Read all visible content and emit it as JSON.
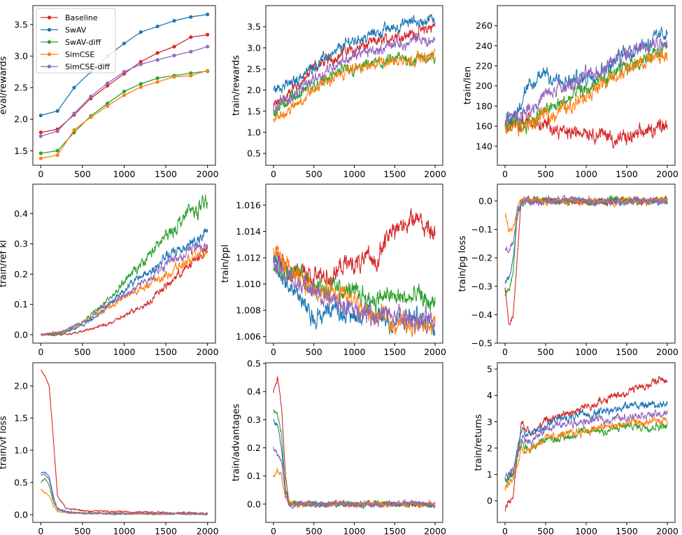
{
  "legend": [
    "Baseline",
    "SwAV",
    "SwAV-diff",
    "SimCSE",
    "SimCSE-diff"
  ],
  "colors": [
    "#d62728",
    "#1f77b4",
    "#2ca02c",
    "#ff7f0e",
    "#9467bd"
  ],
  "chart_data": [
    {
      "type": "line",
      "ylabel": "eval/rewards",
      "markers": true,
      "xlim": [
        -95,
        2095
      ],
      "ylim": [
        1.27,
        3.8
      ],
      "xticks": [
        0,
        500,
        1000,
        1500,
        2000
      ],
      "yticks": [
        1.5,
        2.0,
        2.5,
        3.0,
        3.5
      ],
      "ytick_labels": [
        "1.5",
        "2.0",
        "2.5",
        "3.0",
        "3.5"
      ],
      "legend": "top-left",
      "x": [
        0,
        200,
        400,
        600,
        800,
        1000,
        1200,
        1400,
        1600,
        1800,
        2000
      ],
      "series": [
        {
          "name": "Baseline",
          "values": [
            1.79,
            1.84,
            2.07,
            2.33,
            2.53,
            2.72,
            2.91,
            3.05,
            3.15,
            3.3,
            3.34
          ]
        },
        {
          "name": "SwAV",
          "values": [
            2.06,
            2.13,
            2.5,
            2.75,
            3.0,
            3.2,
            3.38,
            3.47,
            3.56,
            3.62,
            3.66
          ]
        },
        {
          "name": "SwAV-diff",
          "values": [
            1.46,
            1.5,
            1.79,
            2.05,
            2.25,
            2.44,
            2.56,
            2.65,
            2.69,
            2.73,
            2.76
          ]
        },
        {
          "name": "SimCSE",
          "values": [
            1.38,
            1.43,
            1.83,
            2.03,
            2.21,
            2.38,
            2.51,
            2.59,
            2.67,
            2.69,
            2.77
          ]
        },
        {
          "name": "SimCSE-diff",
          "values": [
            1.73,
            1.81,
            2.09,
            2.36,
            2.57,
            2.75,
            2.87,
            2.94,
            3.01,
            3.07,
            3.15
          ]
        }
      ]
    },
    {
      "type": "line",
      "ylabel": "train/rewards",
      "xlim": [
        -95,
        2095
      ],
      "ylim": [
        0.22,
        4.0
      ],
      "xticks": [
        0,
        500,
        1000,
        1500,
        2000
      ],
      "yticks": [
        0.5,
        1,
        1.5,
        2,
        2.5,
        3,
        3.5
      ],
      "ytick_labels": [
        "0.5",
        "1.0",
        "1.5",
        "2.0",
        "2.5",
        "3.0",
        "3.5"
      ],
      "noise": 0.09,
      "x": [
        0,
        250,
        500,
        750,
        1000,
        1250,
        1500,
        1750,
        2000
      ],
      "series": [
        {
          "name": "Baseline",
          "values": [
            1.6,
            2.0,
            2.5,
            2.8,
            3.0,
            3.1,
            3.3,
            3.35,
            3.5
          ]
        },
        {
          "name": "SwAV",
          "values": [
            2.0,
            2.2,
            2.6,
            2.9,
            3.2,
            3.35,
            3.5,
            3.6,
            3.65
          ]
        },
        {
          "name": "SwAV-diff",
          "values": [
            1.5,
            1.8,
            2.1,
            2.35,
            2.5,
            2.6,
            2.7,
            2.75,
            2.75
          ]
        },
        {
          "name": "SimCSE",
          "values": [
            1.3,
            1.6,
            2.0,
            2.3,
            2.5,
            2.6,
            2.7,
            2.75,
            2.8
          ]
        },
        {
          "name": "SimCSE-diff",
          "values": [
            1.6,
            1.9,
            2.3,
            2.6,
            2.8,
            2.95,
            3.05,
            3.15,
            3.2
          ]
        }
      ]
    },
    {
      "type": "line",
      "ylabel": "train/len",
      "xlim": [
        -95,
        2095
      ],
      "ylim": [
        121,
        280
      ],
      "xticks": [
        0,
        500,
        1000,
        1500,
        2000
      ],
      "yticks": [
        140,
        160,
        180,
        200,
        220,
        240,
        260
      ],
      "ytick_labels": [
        "140",
        "160",
        "180",
        "200",
        "220",
        "240",
        "260"
      ],
      "noise": 5,
      "x": [
        0,
        250,
        500,
        750,
        1000,
        1250,
        1500,
        1750,
        2000
      ],
      "series": [
        {
          "name": "Baseline",
          "values": [
            160,
            165,
            160,
            155,
            155,
            150,
            145,
            155,
            165
          ]
        },
        {
          "name": "SwAV",
          "values": [
            160,
            190,
            215,
            200,
            210,
            220,
            235,
            245,
            255
          ]
        },
        {
          "name": "SwAV-diff",
          "values": [
            160,
            165,
            175,
            185,
            195,
            205,
            220,
            230,
            235
          ]
        },
        {
          "name": "SimCSE",
          "values": [
            155,
            160,
            170,
            180,
            190,
            205,
            215,
            225,
            230
          ]
        },
        {
          "name": "SimCSE-diff",
          "values": [
            165,
            175,
            190,
            200,
            210,
            220,
            230,
            240,
            245
          ]
        }
      ]
    },
    {
      "type": "line",
      "ylabel": "train/ref kl",
      "xlim": [
        -95,
        2095
      ],
      "ylim": [
        -0.028,
        0.497
      ],
      "xticks": [
        0,
        500,
        1000,
        1500,
        2000
      ],
      "yticks": [
        0,
        0.1,
        0.2,
        0.3,
        0.4
      ],
      "ytick_labels": [
        "0.0",
        "0.1",
        "0.2",
        "0.3",
        "0.4"
      ],
      "noise": 0.012,
      "x": [
        0,
        250,
        500,
        750,
        1000,
        1250,
        1500,
        1750,
        2000
      ],
      "series": [
        {
          "name": "Baseline",
          "values": [
            0,
            0,
            0.01,
            0.03,
            0.06,
            0.1,
            0.16,
            0.22,
            0.28
          ]
        },
        {
          "name": "SwAV",
          "values": [
            0,
            0.005,
            0.03,
            0.08,
            0.15,
            0.2,
            0.25,
            0.3,
            0.33
          ]
        },
        {
          "name": "SwAV-diff",
          "values": [
            0,
            0.005,
            0.04,
            0.1,
            0.17,
            0.25,
            0.32,
            0.4,
            0.43
          ]
        },
        {
          "name": "SimCSE",
          "values": [
            0,
            0.01,
            0.04,
            0.08,
            0.12,
            0.16,
            0.2,
            0.24,
            0.27
          ]
        },
        {
          "name": "SimCSE-diff",
          "values": [
            0,
            0.01,
            0.04,
            0.09,
            0.13,
            0.18,
            0.23,
            0.27,
            0.3
          ]
        }
      ]
    },
    {
      "type": "line",
      "ylabel": "train/ppl",
      "xlim": [
        -95,
        2095
      ],
      "ylim": [
        1.0055,
        1.0176
      ],
      "xticks": [
        0,
        500,
        1000,
        1500,
        2000
      ],
      "yticks": [
        1.006,
        1.008,
        1.01,
        1.012,
        1.014,
        1.016
      ],
      "ytick_labels": [
        "1.006",
        "1.008",
        "1.010",
        "1.012",
        "1.014",
        "1.016"
      ],
      "noise": 0.0005,
      "x": [
        0,
        250,
        500,
        750,
        1000,
        1250,
        1500,
        1750,
        2000
      ],
      "series": [
        {
          "name": "Baseline",
          "values": [
            1.012,
            1.011,
            1.0105,
            1.0108,
            1.0115,
            1.012,
            1.0145,
            1.015,
            1.014
          ]
        },
        {
          "name": "SwAV",
          "values": [
            1.012,
            1.0095,
            1.0075,
            1.008,
            1.0078,
            1.0074,
            1.0072,
            1.0072,
            1.0072
          ]
        },
        {
          "name": "SwAV-diff",
          "values": [
            1.0115,
            1.011,
            1.0102,
            1.0098,
            1.0095,
            1.009,
            1.009,
            1.0088,
            1.0085
          ]
        },
        {
          "name": "SimCSE",
          "values": [
            1.0125,
            1.0105,
            1.0098,
            1.0092,
            1.0085,
            1.0075,
            1.0072,
            1.007,
            1.007
          ]
        },
        {
          "name": "SimCSE-diff",
          "values": [
            1.0115,
            1.0103,
            1.0093,
            1.0086,
            1.008,
            1.0077,
            1.0075,
            1.0073,
            1.0072
          ]
        }
      ]
    },
    {
      "type": "line",
      "ylabel": "train/pg loss",
      "xlim": [
        -95,
        2095
      ],
      "ylim": [
        -0.5,
        0.059
      ],
      "xticks": [
        0,
        500,
        1000,
        1500,
        2000
      ],
      "yticks": [
        -0.5,
        -0.4,
        -0.3,
        -0.2,
        -0.1,
        0
      ],
      "ytick_labels": [
        "−0.5",
        "−0.4",
        "−0.3",
        "−0.2",
        "−0.1",
        "0.0"
      ],
      "noise": 0.008,
      "x": [
        0,
        50,
        100,
        150,
        200,
        300,
        2000
      ],
      "series": [
        {
          "name": "Baseline",
          "values": [
            -0.3,
            -0.43,
            -0.4,
            -0.2,
            0,
            0,
            0
          ]
        },
        {
          "name": "SwAV",
          "values": [
            -0.28,
            -0.27,
            -0.2,
            -0.05,
            0,
            0,
            0
          ]
        },
        {
          "name": "SwAV-diff",
          "values": [
            -0.33,
            -0.32,
            -0.25,
            -0.05,
            0,
            0,
            0
          ]
        },
        {
          "name": "SimCSE",
          "values": [
            -0.05,
            -0.1,
            -0.1,
            -0.02,
            0,
            0,
            0
          ]
        },
        {
          "name": "SimCSE-diff",
          "values": [
            -0.17,
            -0.17,
            -0.15,
            -0.03,
            0,
            0,
            0
          ]
        }
      ]
    },
    {
      "type": "line",
      "ylabel": "train/vf loss",
      "xlim": [
        -95,
        2095
      ],
      "ylim": [
        -0.12,
        2.36
      ],
      "xticks": [
        0,
        500,
        1000,
        1500,
        2000
      ],
      "yticks": [
        0,
        0.5,
        1,
        1.5,
        2
      ],
      "ytick_labels": [
        "0.0",
        "0.5",
        "1.0",
        "1.5",
        "2.0"
      ],
      "noise": 0.008,
      "x": [
        0,
        50,
        100,
        150,
        200,
        300,
        500,
        2000
      ],
      "series": [
        {
          "name": "Baseline",
          "values": [
            2.25,
            2.15,
            2.0,
            1.2,
            0.3,
            0.1,
            0.06,
            0.02
          ]
        },
        {
          "name": "SwAV",
          "values": [
            0.65,
            0.65,
            0.6,
            0.3,
            0.1,
            0.05,
            0.03,
            0.01
          ]
        },
        {
          "name": "SwAV-diff",
          "values": [
            0.5,
            0.55,
            0.45,
            0.2,
            0.08,
            0.04,
            0.02,
            0.01
          ]
        },
        {
          "name": "SimCSE",
          "values": [
            0.4,
            0.35,
            0.3,
            0.15,
            0.05,
            0.03,
            0.02,
            0.01
          ]
        },
        {
          "name": "SimCSE-diff",
          "values": [
            0.62,
            0.62,
            0.55,
            0.25,
            0.08,
            0.04,
            0.02,
            0.01
          ]
        }
      ]
    },
    {
      "type": "line",
      "ylabel": "train/advantages",
      "xlim": [
        -95,
        2095
      ],
      "ylim": [
        -0.065,
        0.5025
      ],
      "xticks": [
        0,
        500,
        1000,
        1500,
        2000
      ],
      "yticks": [
        0,
        0.1,
        0.2,
        0.3,
        0.4,
        0.5
      ],
      "ytick_labels": [
        "0.0",
        "0.1",
        "0.2",
        "0.3",
        "0.4",
        "0.5"
      ],
      "noise": 0.006,
      "x": [
        0,
        50,
        100,
        150,
        200,
        300,
        2000
      ],
      "series": [
        {
          "name": "Baseline",
          "values": [
            0.4,
            0.45,
            0.35,
            0.1,
            0,
            0,
            0
          ]
        },
        {
          "name": "SwAV",
          "values": [
            0.3,
            0.28,
            0.2,
            0.05,
            0,
            0,
            0
          ]
        },
        {
          "name": "SwAV-diff",
          "values": [
            0.33,
            0.32,
            0.25,
            0.05,
            0,
            0,
            0
          ]
        },
        {
          "name": "SimCSE",
          "values": [
            0.1,
            0.12,
            0.1,
            0.02,
            0,
            0,
            0
          ]
        },
        {
          "name": "SimCSE-diff",
          "values": [
            0.2,
            0.18,
            0.15,
            0.03,
            0,
            0,
            0
          ]
        }
      ]
    },
    {
      "type": "line",
      "ylabel": "train/returns",
      "xlim": [
        -95,
        2095
      ],
      "ylim": [
        -0.82,
        5.24
      ],
      "xticks": [
        0,
        500,
        1000,
        1500,
        2000
      ],
      "yticks": [
        0,
        1,
        2,
        3,
        4,
        5
      ],
      "ytick_labels": [
        "0",
        "1",
        "2",
        "3",
        "4",
        "5"
      ],
      "noise": 0.1,
      "x": [
        0,
        100,
        200,
        300,
        500,
        1000,
        1500,
        2000
      ],
      "series": [
        {
          "name": "Baseline",
          "values": [
            -0.3,
            0.2,
            3.0,
            2.6,
            3.0,
            3.6,
            4.1,
            4.7
          ]
        },
        {
          "name": "SwAV",
          "values": [
            0.8,
            1.0,
            2.7,
            2.5,
            2.9,
            3.3,
            3.6,
            3.75
          ]
        },
        {
          "name": "SwAV-diff",
          "values": [
            0.7,
            1.0,
            2.2,
            2.0,
            2.3,
            2.6,
            2.8,
            2.9
          ]
        },
        {
          "name": "SimCSE",
          "values": [
            0.5,
            0.8,
            2.0,
            2.0,
            2.4,
            2.7,
            2.9,
            3.0
          ]
        },
        {
          "name": "SimCSE-diff",
          "values": [
            0.9,
            1.1,
            2.4,
            2.3,
            2.7,
            3.0,
            3.2,
            3.3
          ]
        }
      ]
    }
  ]
}
